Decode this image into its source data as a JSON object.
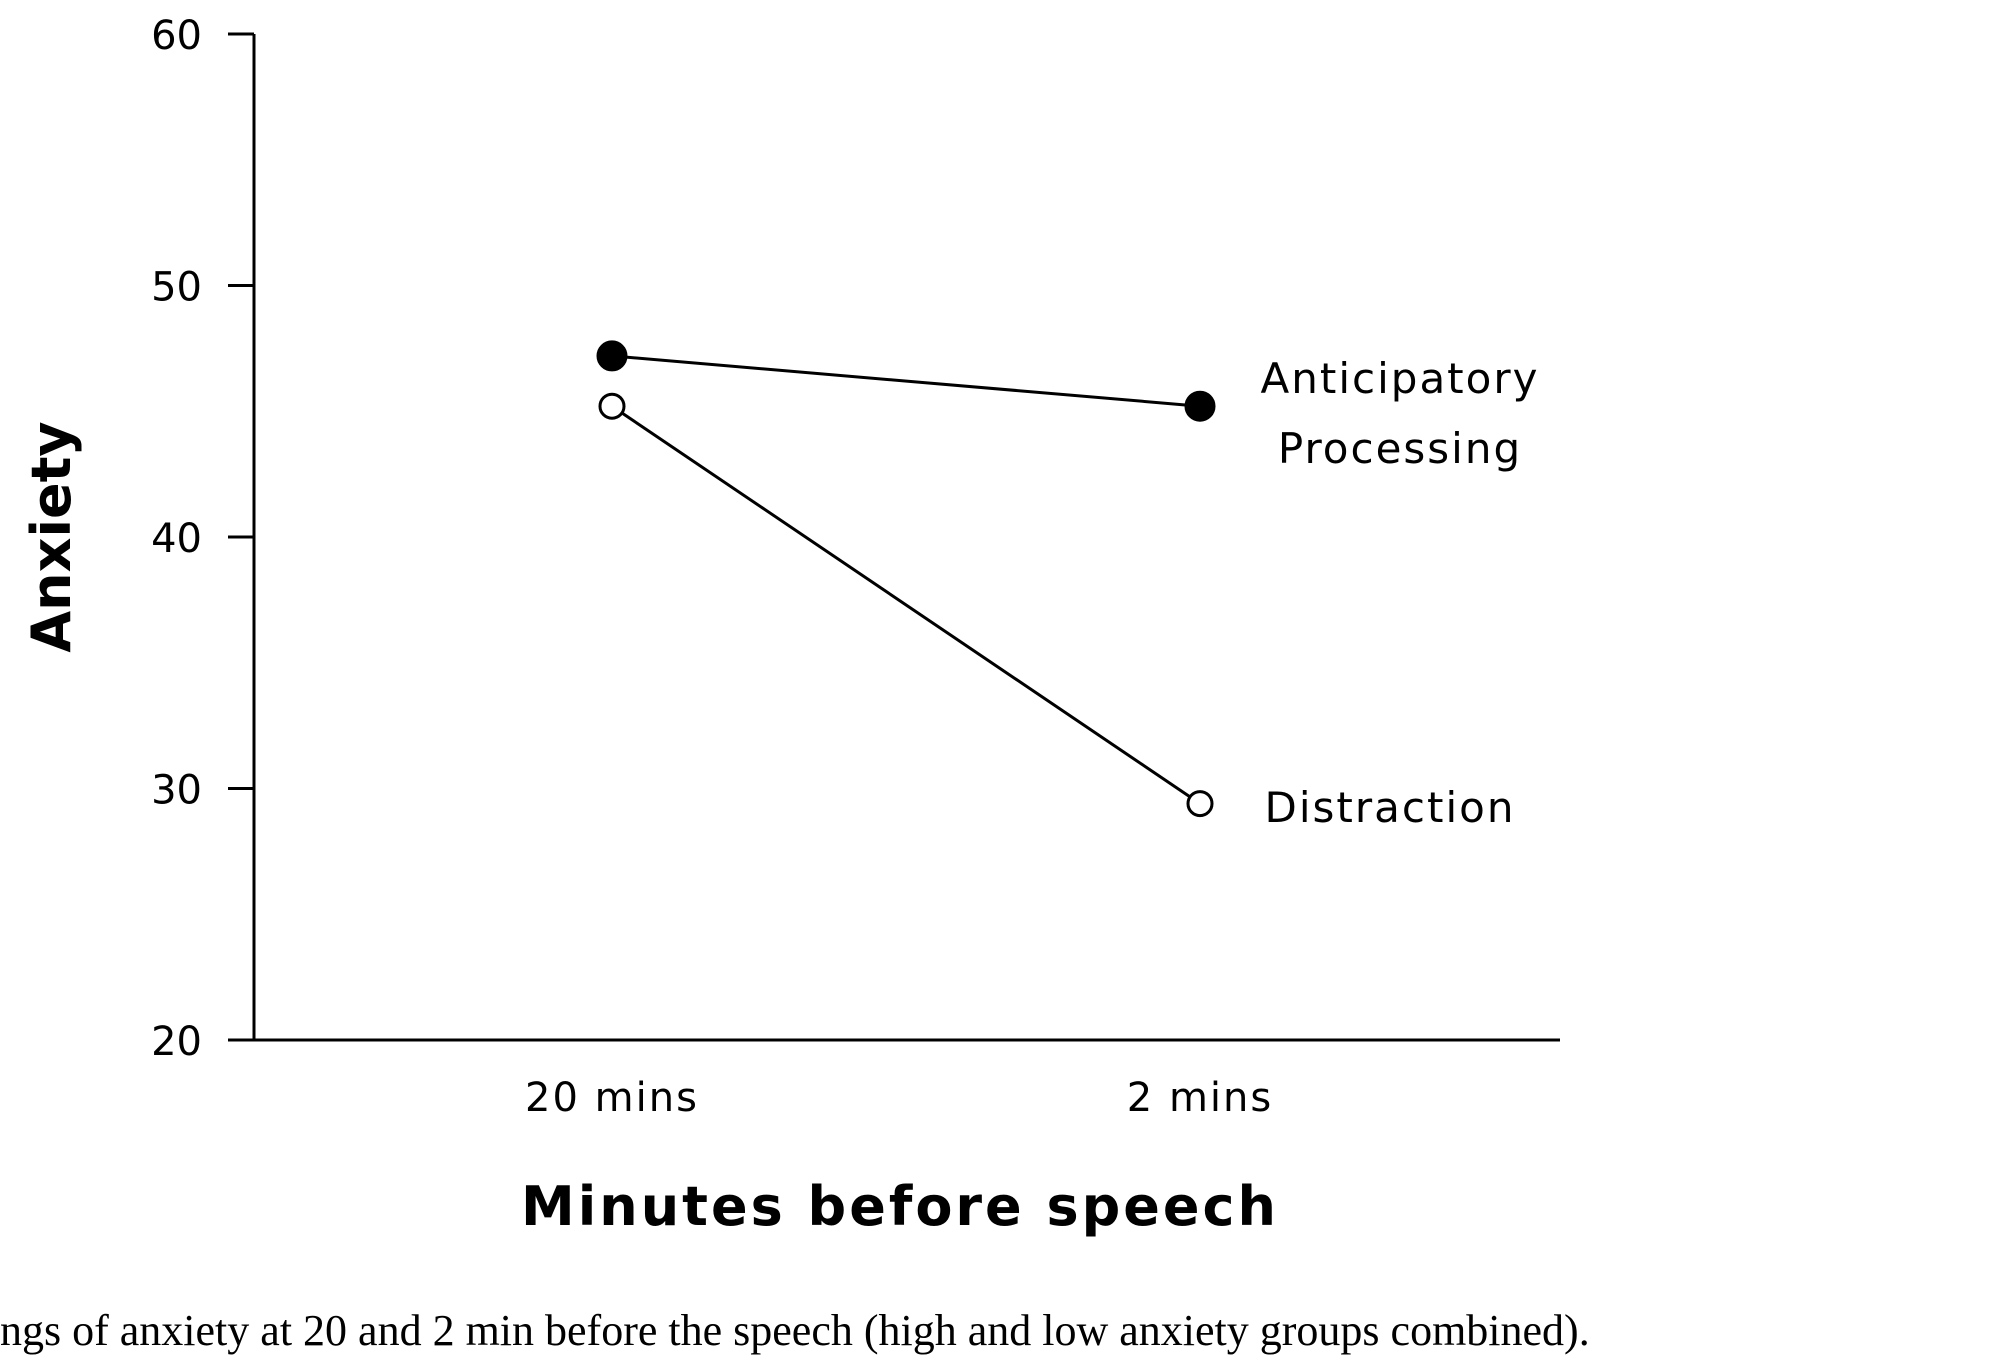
{
  "chart_data": {
    "type": "line",
    "categories": [
      "20 mins",
      "2 mins"
    ],
    "series": [
      {
        "name": "Anticipatory Processing",
        "label_lines": [
          "Anticipatory",
          "Processing"
        ],
        "values": [
          47.2,
          45.2
        ],
        "marker": "filled-circle"
      },
      {
        "name": "Distraction",
        "label_lines": [
          "Distraction"
        ],
        "values": [
          45.2,
          29.4
        ],
        "marker": "open-circle"
      }
    ],
    "title": "",
    "xlabel": "Minutes before speech",
    "ylabel": "Anxiety",
    "ylim": [
      20,
      60
    ],
    "yticks": [
      20,
      30,
      40,
      50,
      60
    ],
    "grid": false,
    "legend": "direct labels at right end of lines",
    "caption": "ngs of anxiety at 20 and 2 min before the speech (high and low anxiety groups combined)."
  }
}
